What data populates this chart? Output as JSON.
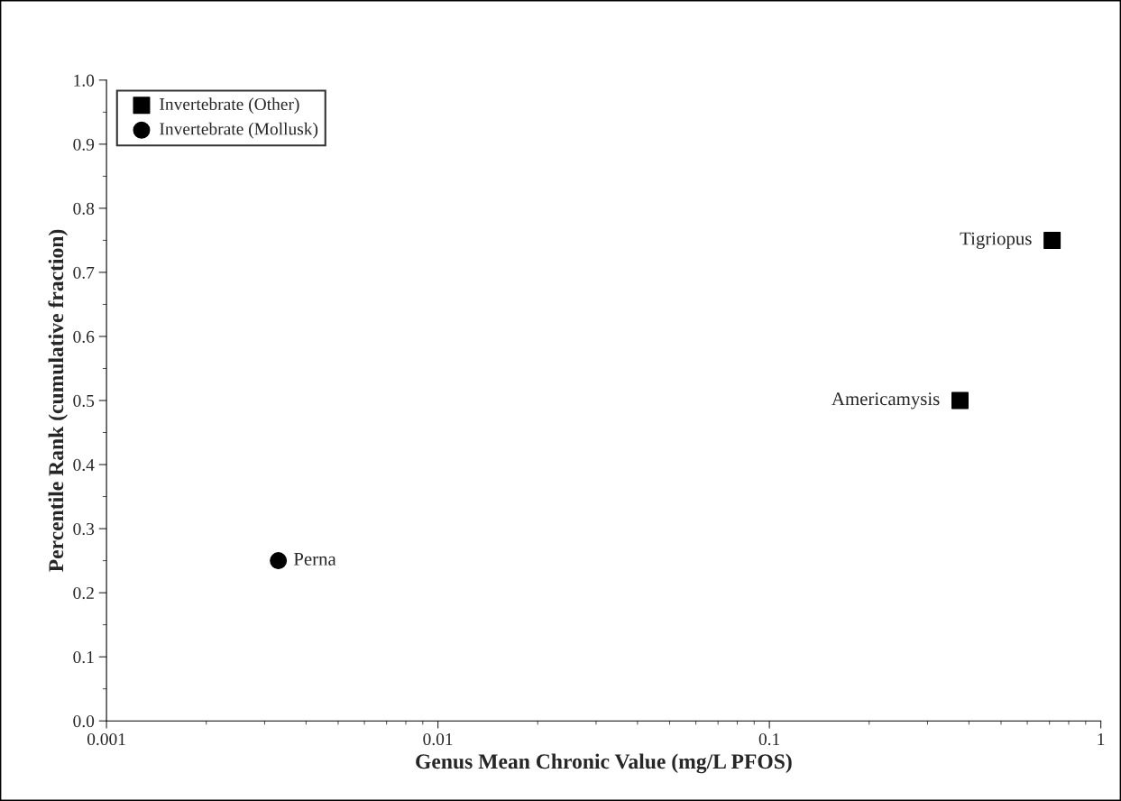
{
  "chart_data": {
    "type": "scatter",
    "xlabel": "Genus Mean Chronic Value (mg/L PFOS)",
    "ylabel": "Percentile Rank (cumulative fraction)",
    "log": "x",
    "xlim": [
      0.001,
      1
    ],
    "xticks": [
      0.001,
      0.01,
      0.1,
      1
    ],
    "ylim": [
      0,
      1
    ],
    "yticks": [
      {
        "value": 0,
        "label": "0.0"
      },
      0.1,
      0.2,
      0.3,
      0.4,
      0.5,
      0.6,
      0.7,
      0.8,
      0.9,
      {
        "value": 1,
        "label": "1.0"
      }
    ],
    "grid": false,
    "legend": "top left",
    "series": [
      {
        "name": "Invertebrate (Other)",
        "color": "#000000",
        "marker": "square",
        "x": [
          0.376,
          0.713
        ],
        "values": [
          0.5,
          0.75
        ]
      },
      {
        "name": "Invertebrate (Mollusk)",
        "color": "#000000",
        "marker": "circle",
        "x": [
          0.0033
        ],
        "values": [
          0.25
        ]
      }
    ],
    "annotations": [
      {
        "text": "Americamysis",
        "x": 0.376,
        "y": 0.5
      },
      {
        "text": "Tigriopus",
        "x": 0.713,
        "y": 0.75
      },
      {
        "text": "Perna",
        "x": 0.0033,
        "y": 0.25
      }
    ]
  }
}
